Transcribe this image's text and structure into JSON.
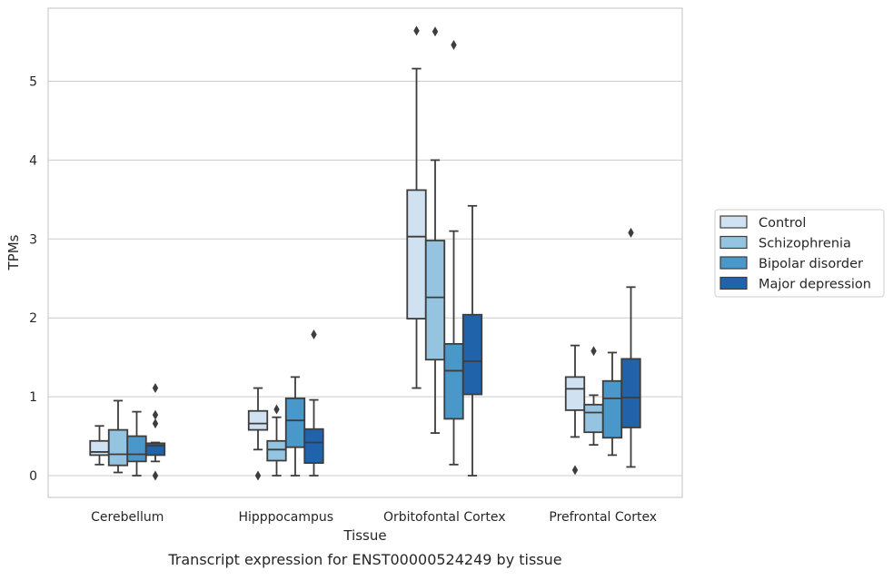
{
  "chart_data": {
    "type": "box",
    "xlabel": "Tissue",
    "ylabel": "TPMs",
    "caption": "Transcript expression for ENST00000524249 by tissue",
    "ylim": [
      -0.28,
      5.95
    ],
    "yticks": [
      0,
      1,
      2,
      3,
      4,
      5
    ],
    "grid": true,
    "legend_position": "right",
    "categories": [
      "Cerebellum",
      "Hipppocampus",
      "Orbitofontal Cortex",
      "Prefrontal Cortex"
    ],
    "series": [
      {
        "name": "Control",
        "color": "#d0e1f2",
        "boxes": [
          {
            "whislo": 0.14,
            "q1": 0.26,
            "med": 0.3,
            "q3": 0.44,
            "whishi": 0.63,
            "fliers": []
          },
          {
            "whislo": 0.33,
            "q1": 0.58,
            "med": 0.66,
            "q3": 0.82,
            "whishi": 1.11,
            "fliers": [
              0.0
            ]
          },
          {
            "whislo": 1.11,
            "q1": 1.99,
            "med": 3.03,
            "q3": 3.62,
            "whishi": 5.16,
            "fliers": [
              5.64
            ]
          },
          {
            "whislo": 0.49,
            "q1": 0.83,
            "med": 1.1,
            "q3": 1.25,
            "whishi": 1.65,
            "fliers": [
              0.07
            ]
          }
        ]
      },
      {
        "name": "Schizophrenia",
        "color": "#94c4df",
        "boxes": [
          {
            "whislo": 0.04,
            "q1": 0.13,
            "med": 0.27,
            "q3": 0.58,
            "whishi": 0.95,
            "fliers": []
          },
          {
            "whislo": 0.0,
            "q1": 0.19,
            "med": 0.33,
            "q3": 0.44,
            "whishi": 0.74,
            "fliers": [
              0.84
            ]
          },
          {
            "whislo": 0.54,
            "q1": 1.47,
            "med": 2.26,
            "q3": 2.98,
            "whishi": 4.0,
            "fliers": [
              5.63
            ]
          },
          {
            "whislo": 0.39,
            "q1": 0.55,
            "med": 0.8,
            "q3": 0.9,
            "whishi": 1.02,
            "fliers": [
              1.58
            ]
          }
        ]
      },
      {
        "name": "Bipolar disorder",
        "color": "#4a98c9",
        "boxes": [
          {
            "whislo": 0.0,
            "q1": 0.18,
            "med": 0.27,
            "q3": 0.5,
            "whishi": 0.81,
            "fliers": []
          },
          {
            "whislo": 0.0,
            "q1": 0.36,
            "med": 0.7,
            "q3": 0.98,
            "whishi": 1.25,
            "fliers": []
          },
          {
            "whislo": 0.14,
            "q1": 0.72,
            "med": 1.33,
            "q3": 1.67,
            "whishi": 3.1,
            "fliers": [
              5.46
            ]
          },
          {
            "whislo": 0.26,
            "q1": 0.48,
            "med": 0.98,
            "q3": 1.2,
            "whishi": 1.56,
            "fliers": []
          }
        ]
      },
      {
        "name": "Major depression",
        "color": "#2163aa",
        "boxes": [
          {
            "whislo": 0.18,
            "q1": 0.26,
            "med": 0.38,
            "q3": 0.41,
            "whishi": 0.42,
            "fliers": [
              0.0,
              0.66,
              0.77,
              1.11
            ]
          },
          {
            "whislo": 0.0,
            "q1": 0.16,
            "med": 0.42,
            "q3": 0.59,
            "whishi": 0.96,
            "fliers": [
              1.79
            ]
          },
          {
            "whislo": 0.0,
            "q1": 1.03,
            "med": 1.45,
            "q3": 2.04,
            "whishi": 3.42,
            "fliers": []
          },
          {
            "whislo": 0.11,
            "q1": 0.61,
            "med": 0.99,
            "q3": 1.48,
            "whishi": 2.39,
            "fliers": [
              3.08
            ]
          }
        ]
      }
    ]
  }
}
